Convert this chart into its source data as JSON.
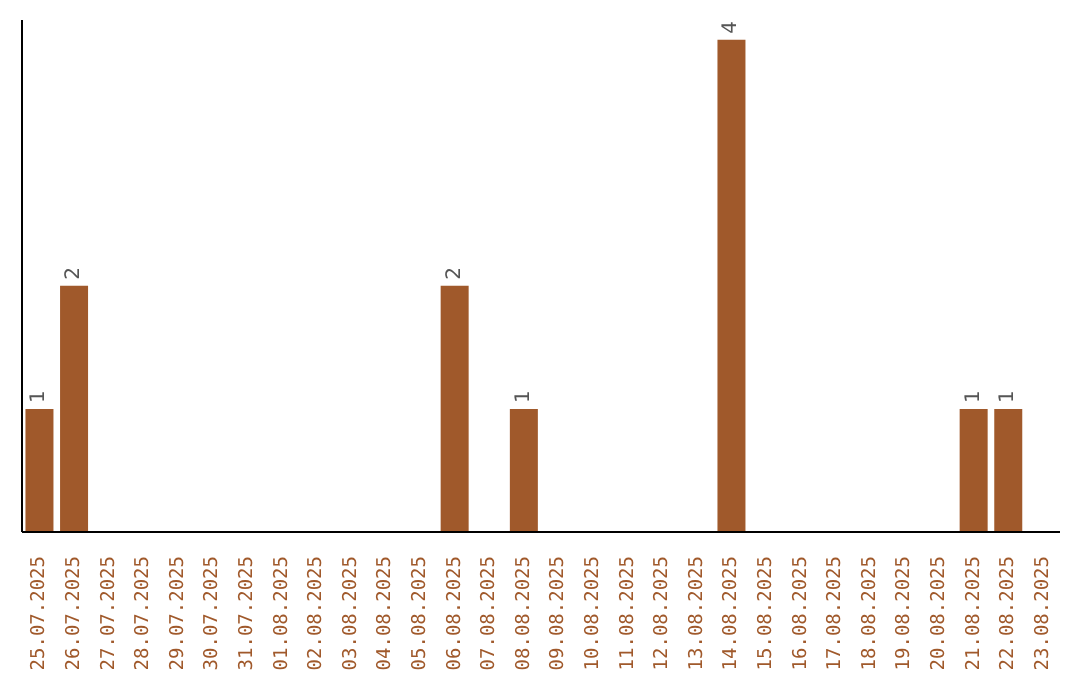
{
  "chart_data": {
    "type": "bar",
    "categories": [
      "25.07.2025",
      "26.07.2025",
      "27.07.2025",
      "28.07.2025",
      "29.07.2025",
      "30.07.2025",
      "31.07.2025",
      "01.08.2025",
      "02.08.2025",
      "03.08.2025",
      "04.08.2025",
      "05.08.2025",
      "06.08.2025",
      "07.08.2025",
      "08.08.2025",
      "09.08.2025",
      "10.08.2025",
      "11.08.2025",
      "12.08.2025",
      "13.08.2025",
      "14.08.2025",
      "15.08.2025",
      "16.08.2025",
      "17.08.2025",
      "18.08.2025",
      "19.08.2025",
      "20.08.2025",
      "21.08.2025",
      "22.08.2025",
      "23.08.2025"
    ],
    "values": [
      1,
      2,
      null,
      null,
      null,
      null,
      null,
      null,
      null,
      null,
      null,
      null,
      2,
      null,
      1,
      null,
      null,
      null,
      null,
      null,
      4,
      null,
      null,
      null,
      null,
      null,
      null,
      1,
      1,
      null
    ],
    "color": "#a0592b",
    "data_labels": true,
    "relative": false,
    "grid": false,
    "legend": false,
    "tick_labels": "x"
  }
}
